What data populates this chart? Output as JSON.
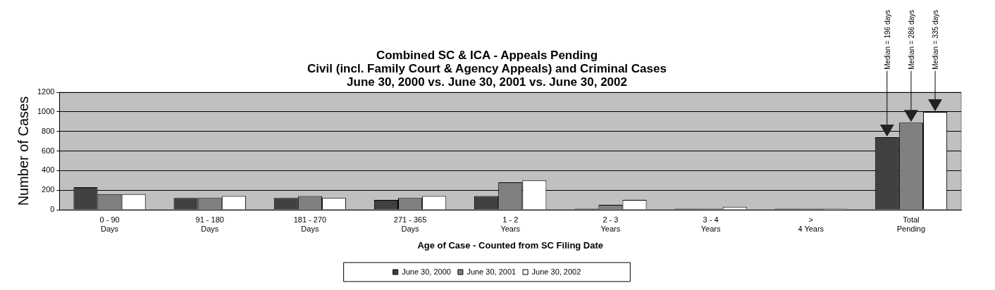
{
  "chart_data": {
    "type": "bar",
    "title": [
      "Combined SC & ICA - Appeals Pending",
      "Civil (incl. Family Court & Agency Appeals) and Criminal Cases",
      "June 30, 2000 vs. June 30, 2001 vs. June 30, 2002"
    ],
    "xlabel": "Age of Case - Counted from SC Filing Date",
    "ylabel": "Number of Cases",
    "categories": [
      "0 - 90\nDays",
      "91 - 180\nDays",
      "181 - 270\nDays",
      "271 - 365\nDays",
      "1 - 2\nYears",
      "2 - 3\nYears",
      "3 - 4\nYears",
      ">\n4 Years",
      "Total\nPending"
    ],
    "series": [
      {
        "name": "June 30, 2000",
        "color": "#404040",
        "values": [
          230,
          120,
          120,
          100,
          140,
          10,
          10,
          10,
          740
        ]
      },
      {
        "name": "June 30, 2001",
        "color": "#808080",
        "values": [
          160,
          120,
          140,
          120,
          280,
          50,
          10,
          10,
          890
        ]
      },
      {
        "name": "June 30, 2002",
        "color": "#ffffff",
        "values": [
          160,
          140,
          120,
          140,
          300,
          100,
          30,
          10,
          1000
        ]
      }
    ],
    "ylim": [
      0,
      1200
    ],
    "yticks": [
      0,
      200,
      400,
      600,
      800,
      1000,
      1200
    ],
    "grid": "y",
    "legend": "bottom",
    "annotations": [
      "Median = 196 days",
      "Median = 286 days",
      "Median = 335 days"
    ]
  }
}
